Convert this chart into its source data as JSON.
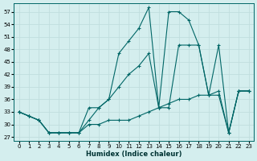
{
  "xlabel": "Humidex (Indice chaleur)",
  "bg_color": "#d4eeee",
  "grid_color": "#c0dede",
  "line_color": "#006666",
  "xlim": [
    -0.5,
    23.5
  ],
  "ylim": [
    26,
    59
  ],
  "yticks": [
    27,
    30,
    33,
    36,
    39,
    42,
    45,
    48,
    51,
    54,
    57
  ],
  "xticks": [
    0,
    1,
    2,
    3,
    4,
    5,
    6,
    7,
    8,
    9,
    10,
    11,
    12,
    13,
    14,
    15,
    16,
    17,
    18,
    19,
    20,
    21,
    22,
    23
  ],
  "series": [
    {
      "x": [
        0,
        1,
        2,
        3,
        4,
        5,
        6,
        7,
        8,
        9,
        10,
        11,
        12,
        13,
        14,
        15,
        16,
        17,
        18,
        19,
        20,
        21,
        22,
        23
      ],
      "y": [
        33,
        32,
        31,
        28,
        28,
        28,
        28,
        30,
        30,
        31,
        31,
        31,
        32,
        33,
        34,
        35,
        36,
        36,
        37,
        37,
        38,
        28,
        38,
        38
      ]
    },
    {
      "x": [
        0,
        1,
        2,
        3,
        4,
        5,
        6,
        7,
        8,
        9,
        10,
        11,
        12,
        13,
        14,
        15,
        16,
        17,
        18,
        19,
        20,
        21,
        22,
        23
      ],
      "y": [
        33,
        32,
        31,
        28,
        28,
        28,
        28,
        34,
        34,
        36,
        39,
        42,
        44,
        47,
        34,
        34,
        49,
        49,
        49,
        37,
        49,
        28,
        38,
        38
      ]
    },
    {
      "x": [
        0,
        1,
        2,
        3,
        4,
        5,
        6,
        7,
        8,
        9,
        10,
        11,
        12,
        13,
        14,
        15,
        16,
        17,
        18,
        19,
        20,
        21,
        22,
        23
      ],
      "y": [
        33,
        32,
        31,
        28,
        28,
        28,
        28,
        31,
        34,
        36,
        47,
        50,
        53,
        58,
        34,
        57,
        57,
        55,
        49,
        37,
        37,
        28,
        38,
        38
      ]
    }
  ]
}
